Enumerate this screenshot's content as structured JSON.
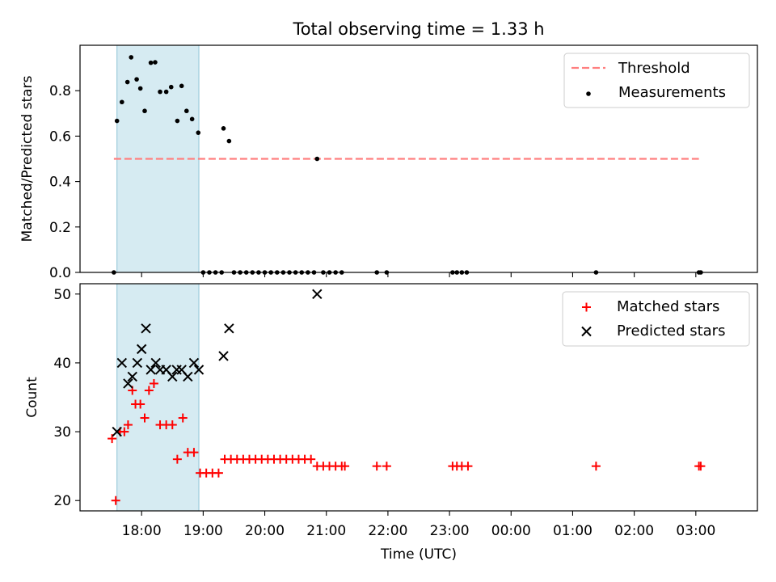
{
  "title": "Total observing time = 1.33 h",
  "chart_data": [
    {
      "type": "scatter",
      "ylabel": "Matched/Predicted stars",
      "ylim": [
        0,
        1.0
      ],
      "yticks": [
        "0.0",
        "0.2",
        "0.4",
        "0.6",
        "0.8"
      ],
      "legend": {
        "position": "top-right",
        "entries": [
          "Threshold",
          "Measurements"
        ]
      },
      "threshold": {
        "name": "Threshold",
        "value": 0.5,
        "x_start_h": 17.55,
        "x_end_h": 27.05,
        "color": "#ff7f7f"
      },
      "series": [
        {
          "name": "Measurements",
          "color": "#000000",
          "points": [
            [
              17.55,
              0.0
            ],
            [
              17.6,
              0.667
            ],
            [
              17.68,
              0.75
            ],
            [
              17.77,
              0.838
            ],
            [
              17.83,
              0.947
            ],
            [
              17.92,
              0.85
            ],
            [
              17.98,
              0.81
            ],
            [
              18.05,
              0.711
            ],
            [
              18.15,
              0.923
            ],
            [
              18.22,
              0.925
            ],
            [
              18.3,
              0.795
            ],
            [
              18.4,
              0.795
            ],
            [
              18.48,
              0.816
            ],
            [
              18.58,
              0.667
            ],
            [
              18.65,
              0.821
            ],
            [
              18.73,
              0.711
            ],
            [
              18.82,
              0.675
            ],
            [
              18.92,
              0.615
            ],
            [
              19.33,
              0.634
            ],
            [
              19.42,
              0.578
            ],
            [
              20.85,
              0.5
            ],
            [
              19.0,
              0.0
            ],
            [
              19.1,
              0.0
            ],
            [
              19.2,
              0.0
            ],
            [
              19.3,
              0.0
            ],
            [
              19.5,
              0.0
            ],
            [
              19.6,
              0.0
            ],
            [
              19.7,
              0.0
            ],
            [
              19.8,
              0.0
            ],
            [
              19.9,
              0.0
            ],
            [
              20.0,
              0.0
            ],
            [
              20.1,
              0.0
            ],
            [
              20.2,
              0.0
            ],
            [
              20.3,
              0.0
            ],
            [
              20.4,
              0.0
            ],
            [
              20.5,
              0.0
            ],
            [
              20.6,
              0.0
            ],
            [
              20.7,
              0.0
            ],
            [
              20.8,
              0.0
            ],
            [
              20.95,
              0.0
            ],
            [
              21.05,
              0.0
            ],
            [
              21.15,
              0.0
            ],
            [
              21.25,
              0.0
            ],
            [
              21.82,
              0.0
            ],
            [
              21.98,
              0.0
            ],
            [
              23.05,
              0.0
            ],
            [
              23.12,
              0.0
            ],
            [
              23.2,
              0.0
            ],
            [
              23.28,
              0.0
            ],
            [
              25.38,
              0.0
            ],
            [
              27.05,
              0.0
            ],
            [
              27.08,
              0.0
            ]
          ]
        }
      ]
    },
    {
      "type": "scatter",
      "xlabel": "Time (UTC)",
      "ylabel": "Count",
      "xlim": [
        17.0,
        28.0
      ],
      "xticks": [
        "18:00",
        "19:00",
        "20:00",
        "21:00",
        "22:00",
        "23:00",
        "00:00",
        "01:00",
        "02:00",
        "03:00"
      ],
      "ylim": [
        18.5,
        51.5
      ],
      "yticks": [
        "20",
        "30",
        "40",
        "50"
      ],
      "legend": {
        "position": "top-right",
        "entries": [
          "Matched stars",
          "Predicted stars"
        ]
      },
      "series": [
        {
          "name": "Matched stars",
          "marker": "+",
          "color": "#ff0000",
          "points": [
            [
              17.52,
              29
            ],
            [
              17.58,
              20
            ],
            [
              17.65,
              30
            ],
            [
              17.72,
              30
            ],
            [
              17.78,
              31
            ],
            [
              17.85,
              36
            ],
            [
              17.9,
              34
            ],
            [
              17.98,
              34
            ],
            [
              18.05,
              32
            ],
            [
              18.12,
              36
            ],
            [
              18.2,
              37
            ],
            [
              18.3,
              31
            ],
            [
              18.4,
              31
            ],
            [
              18.5,
              31
            ],
            [
              18.58,
              26
            ],
            [
              18.67,
              32
            ],
            [
              18.75,
              27
            ],
            [
              18.85,
              27
            ],
            [
              18.95,
              24
            ],
            [
              19.05,
              24
            ],
            [
              19.15,
              24
            ],
            [
              19.25,
              24
            ],
            [
              19.35,
              26
            ],
            [
              19.45,
              26
            ],
            [
              19.55,
              26
            ],
            [
              19.65,
              26
            ],
            [
              19.75,
              26
            ],
            [
              19.85,
              26
            ],
            [
              19.95,
              26
            ],
            [
              20.05,
              26
            ],
            [
              20.15,
              26
            ],
            [
              20.25,
              26
            ],
            [
              20.35,
              26
            ],
            [
              20.45,
              26
            ],
            [
              20.55,
              26
            ],
            [
              20.65,
              26
            ],
            [
              20.75,
              26
            ],
            [
              20.85,
              25
            ],
            [
              20.95,
              25
            ],
            [
              21.05,
              25
            ],
            [
              21.15,
              25
            ],
            [
              21.25,
              25
            ],
            [
              21.3,
              25
            ],
            [
              21.82,
              25
            ],
            [
              21.98,
              25
            ],
            [
              23.05,
              25
            ],
            [
              23.12,
              25
            ],
            [
              23.2,
              25
            ],
            [
              23.3,
              25
            ],
            [
              25.38,
              25
            ],
            [
              27.05,
              25
            ],
            [
              27.08,
              25
            ]
          ]
        },
        {
          "name": "Predicted stars",
          "marker": "x",
          "color": "#000000",
          "points": [
            [
              17.6,
              30
            ],
            [
              17.68,
              40
            ],
            [
              17.78,
              37
            ],
            [
              17.85,
              38
            ],
            [
              17.93,
              40
            ],
            [
              18.0,
              42
            ],
            [
              18.07,
              45
            ],
            [
              18.15,
              39
            ],
            [
              18.23,
              40
            ],
            [
              18.3,
              39
            ],
            [
              18.4,
              39
            ],
            [
              18.5,
              38
            ],
            [
              18.57,
              39
            ],
            [
              18.65,
              39
            ],
            [
              18.75,
              38
            ],
            [
              18.85,
              40
            ],
            [
              18.93,
              39
            ],
            [
              19.33,
              41
            ],
            [
              19.42,
              45
            ],
            [
              20.85,
              50
            ]
          ]
        }
      ]
    }
  ]
}
